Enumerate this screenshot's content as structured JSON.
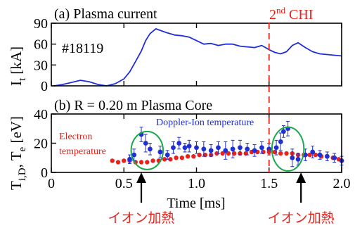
{
  "colors": {
    "axis": "#000000",
    "current": "#1f2fd6",
    "ion": "#1f2fd6",
    "electron": "#e8231c",
    "chi_line": "#e8231c",
    "highlight": "#1aa84a",
    "annotation": "#e8231c"
  },
  "chart_data": [
    {
      "type": "line",
      "title": "(a) Plasma current",
      "shot_label": "#18119",
      "ylabel": "I",
      "ylabel_sub": "t",
      "ylabel_unit": " [kA]",
      "ylim": [
        0,
        90
      ],
      "yticks": [
        0,
        30,
        60,
        90
      ],
      "ytick_labels": [
        "0",
        "30",
        "60",
        "90"
      ],
      "xlim": [
        0,
        2.0
      ],
      "chi_marker": {
        "x": 1.5,
        "label_main": "2",
        "label_sup": "nd",
        "label_rest": " CHI"
      },
      "series": [
        {
          "x": [
            0.02,
            0.08,
            0.14,
            0.2,
            0.26,
            0.32,
            0.38,
            0.44,
            0.5,
            0.54,
            0.58,
            0.62,
            0.65,
            0.68,
            0.72,
            0.76,
            0.8,
            0.85,
            0.9,
            0.95,
            1.0,
            1.05,
            1.1,
            1.15,
            1.2,
            1.25,
            1.3,
            1.35,
            1.4,
            1.45,
            1.5,
            1.54,
            1.58,
            1.62,
            1.66,
            1.7,
            1.75,
            1.8,
            1.85,
            1.9,
            1.95,
            2.0
          ],
          "y": [
            0,
            2,
            5,
            8,
            6,
            2,
            0,
            3,
            10,
            20,
            35,
            50,
            65,
            75,
            82,
            79,
            76,
            73,
            72,
            70,
            65,
            60,
            61,
            58,
            60,
            60,
            57,
            56,
            55,
            58,
            52,
            48,
            46,
            49,
            58,
            62,
            55,
            49,
            46,
            45,
            44,
            43
          ]
        }
      ]
    },
    {
      "type": "scatter",
      "title": "(b) R = 0.20 m Plasma Core",
      "ylabel": "T",
      "ylabel_sub1": "i,D",
      "ylabel_mid": ", T",
      "ylabel_sub2": "e",
      "ylabel_unit": " [eV]",
      "xlabel": "Time [ms]",
      "xlim": [
        0,
        2.0
      ],
      "xticks": [
        0,
        0.5,
        1.0,
        1.5,
        2.0
      ],
      "xtick_labels": [
        "0",
        "0.5",
        "1.0",
        "1.5",
        "2.0"
      ],
      "ylim": [
        0,
        40
      ],
      "yticks": [
        0,
        20,
        40
      ],
      "ytick_labels": [
        "0",
        "20",
        "40"
      ],
      "series": [
        {
          "name": "Doppler-Ion temperature",
          "x": [
            0.54,
            0.57,
            0.62,
            0.65,
            0.68,
            0.75,
            0.8,
            0.84,
            0.88,
            0.92,
            0.95,
            1.0,
            1.05,
            1.1,
            1.15,
            1.2,
            1.25,
            1.3,
            1.35,
            1.4,
            1.45,
            1.5,
            1.55,
            1.58,
            1.6,
            1.63,
            1.66,
            1.7,
            1.75,
            1.8,
            1.85,
            1.9,
            1.95,
            2.0
          ],
          "y": [
            9,
            12,
            26,
            20,
            16,
            14,
            12,
            17,
            20,
            17,
            18,
            17,
            16,
            15,
            17,
            15,
            16,
            17,
            16,
            15,
            17,
            16,
            17,
            21,
            28,
            30,
            10,
            9,
            12,
            14,
            12,
            11,
            10,
            8
          ],
          "err": [
            3,
            4,
            5,
            6,
            4,
            4,
            3,
            4,
            4,
            3,
            4,
            4,
            5,
            4,
            4,
            6,
            6,
            5,
            4,
            4,
            4,
            4,
            5,
            6,
            4,
            5,
            6,
            4,
            4,
            4,
            3,
            3,
            3,
            3
          ]
        },
        {
          "name": "Electron temperature",
          "x": [
            0.42,
            0.46,
            0.5,
            0.54,
            0.58,
            0.62,
            0.66,
            0.7,
            0.74,
            0.78,
            0.82,
            0.86,
            0.9,
            0.94,
            0.98,
            1.02,
            1.06,
            1.1,
            1.14,
            1.18,
            1.22,
            1.26,
            1.3,
            1.34,
            1.38,
            1.42,
            1.46,
            1.5,
            1.54,
            1.58,
            1.62,
            1.66,
            1.7,
            1.74,
            1.78,
            1.82,
            1.86,
            1.9,
            1.94,
            1.98
          ],
          "y": [
            8,
            7,
            8,
            8,
            7,
            7,
            7,
            8,
            8,
            9,
            9,
            10,
            10,
            11,
            11,
            12,
            12,
            12,
            13,
            13,
            13,
            13,
            13,
            13,
            14,
            14,
            14,
            14,
            14,
            13,
            13,
            13,
            12,
            12,
            12,
            12,
            11,
            11,
            10,
            9
          ]
        }
      ],
      "highlights": [
        {
          "cx": 0.66,
          "cy": 15,
          "rx": 0.11,
          "ry": 13
        },
        {
          "cx": 1.63,
          "cy": 16,
          "rx": 0.11,
          "ry": 15
        }
      ],
      "annotations": [
        {
          "text": "イオン加熱",
          "x": 0.62
        },
        {
          "text": "イオン加熱",
          "x": 1.72
        }
      ]
    }
  ]
}
